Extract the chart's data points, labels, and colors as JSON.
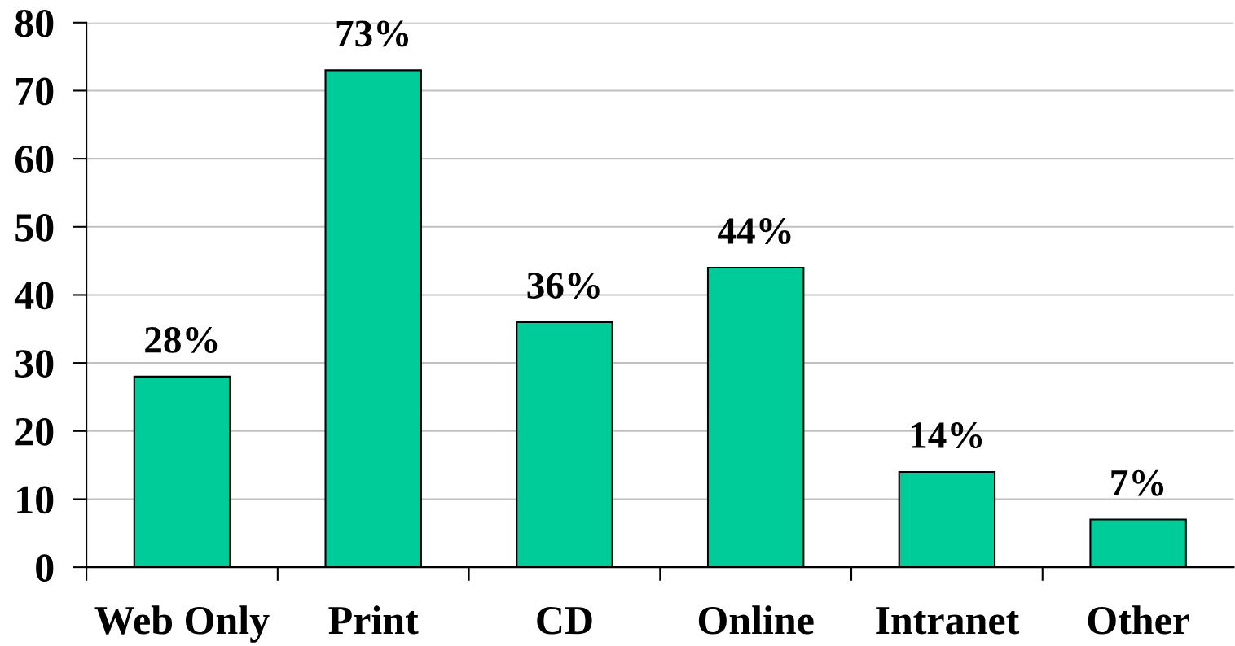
{
  "chart_data": {
    "type": "bar",
    "categories": [
      "Web Only",
      "Print",
      "CD",
      "Online",
      "Intranet",
      "Other"
    ],
    "values": [
      28,
      73,
      36,
      44,
      14,
      7
    ],
    "color": "#00cc99",
    "value_labels": [
      "28%",
      "73%",
      "36%",
      "44%",
      "14%",
      "7%"
    ],
    "ylim": [
      0,
      80
    ],
    "yticks": [
      0,
      10,
      20,
      30,
      40,
      50,
      60,
      70,
      80
    ],
    "grid": "y"
  }
}
